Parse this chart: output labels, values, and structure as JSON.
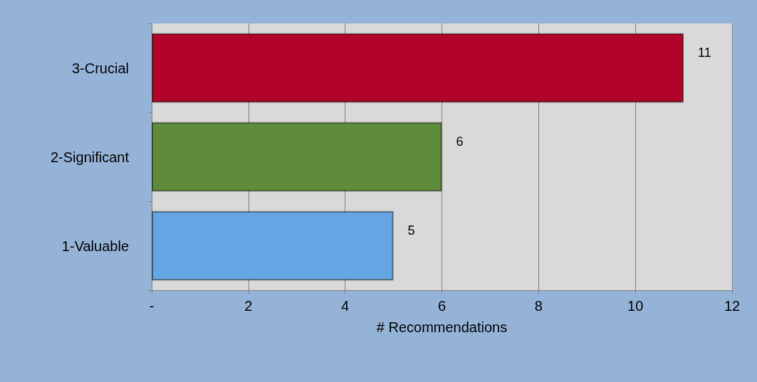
{
  "chart_data": {
    "type": "bar",
    "orientation": "horizontal",
    "xlabel": "# Recommendations",
    "categories": [
      "3-Crucial",
      "2-Significant",
      "1-Valuable"
    ],
    "values": [
      11,
      6,
      5
    ],
    "colors": [
      "#b0022a",
      "#5f8c3b",
      "#63a6e3"
    ],
    "xlim": [
      0,
      12
    ],
    "xticks": [
      {
        "value": 0,
        "label": "-"
      },
      2,
      4,
      6,
      8,
      10,
      12
    ],
    "grid": "x",
    "data_labels": true
  }
}
